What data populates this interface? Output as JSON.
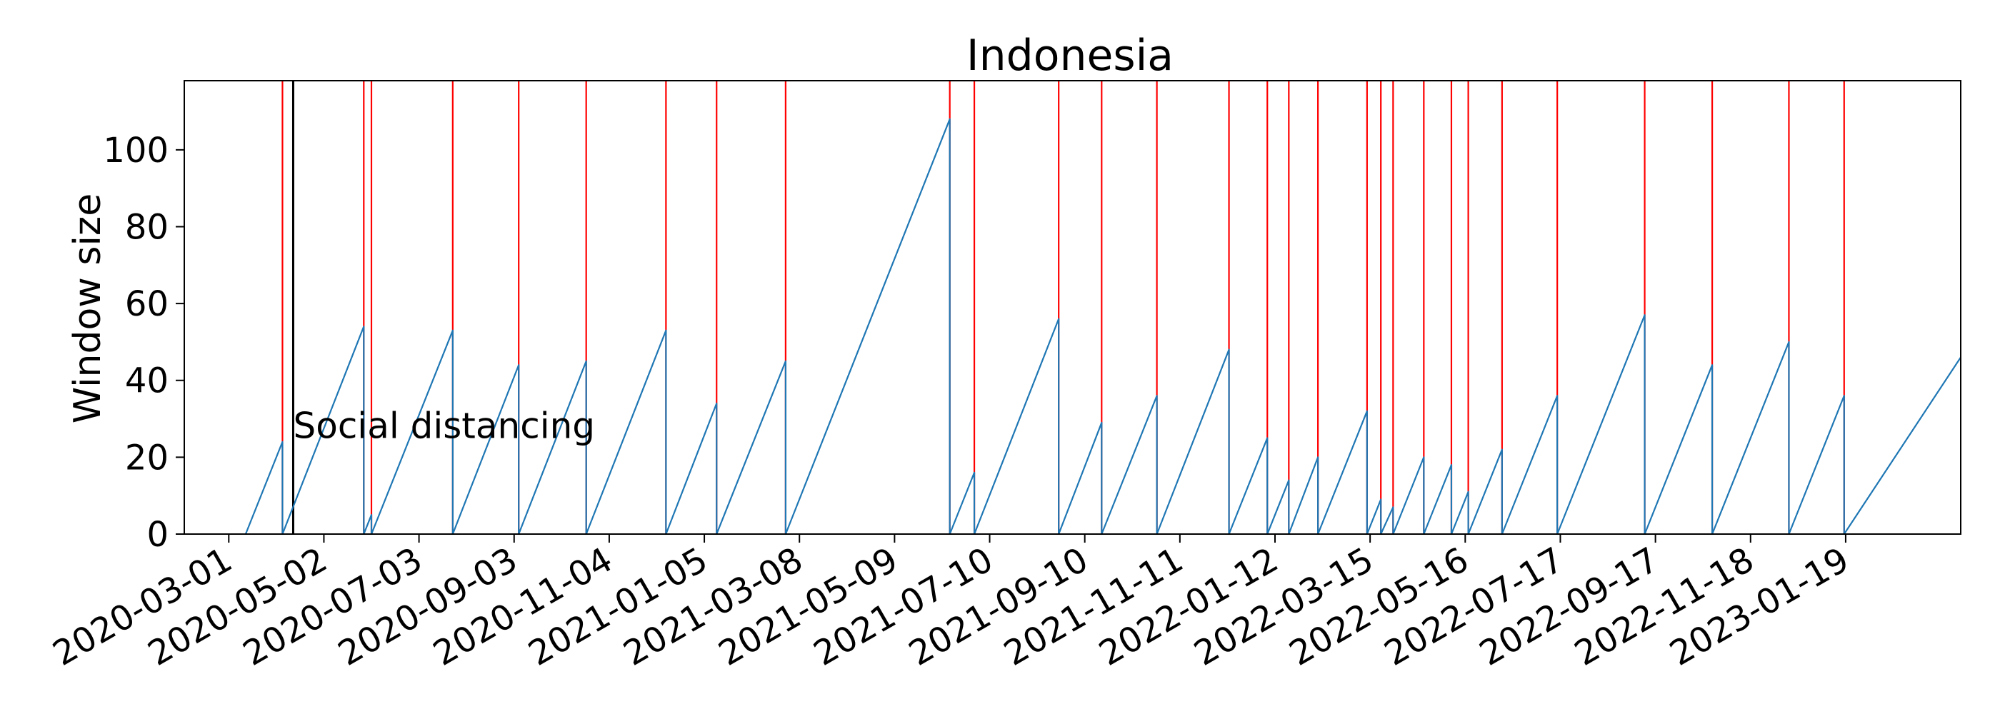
{
  "chart_data": {
    "type": "line",
    "title": "Indonesia",
    "xlabel": "",
    "ylabel": "Window size",
    "ylim": [
      0,
      118
    ],
    "xlim": [
      "2020-02-01",
      "2023-04-04"
    ],
    "y_ticks": [
      0,
      20,
      40,
      60,
      80,
      100
    ],
    "x_ticks": [
      "2020-03-01",
      "2020-05-02",
      "2020-07-03",
      "2020-09-03",
      "2020-11-04",
      "2021-01-05",
      "2021-03-08",
      "2021-05-09",
      "2021-07-10",
      "2021-09-10",
      "2021-11-11",
      "2022-01-12",
      "2022-03-15",
      "2022-05-16",
      "2022-07-17",
      "2022-09-17",
      "2022-11-18",
      "2023-01-19"
    ],
    "grid": false,
    "series": [
      {
        "color": "#1f77b4",
        "points": [
          [
            "2020-03-12",
            0
          ],
          [
            "2020-04-05",
            24
          ],
          [
            "2020-04-05",
            0
          ],
          [
            "2020-05-28",
            54
          ],
          [
            "2020-05-28",
            0
          ],
          [
            "2020-06-02",
            5
          ],
          [
            "2020-06-02",
            0
          ],
          [
            "2020-07-25",
            53
          ],
          [
            "2020-07-25",
            0
          ],
          [
            "2020-09-06",
            44
          ],
          [
            "2020-09-06",
            0
          ],
          [
            "2020-10-20",
            45
          ],
          [
            "2020-10-20",
            0
          ],
          [
            "2020-12-11",
            53
          ],
          [
            "2020-12-11",
            0
          ],
          [
            "2021-01-13",
            34
          ],
          [
            "2021-01-13",
            0
          ],
          [
            "2021-02-27",
            45
          ],
          [
            "2021-02-27",
            0
          ],
          [
            "2021-06-14",
            108
          ],
          [
            "2021-06-14",
            0
          ],
          [
            "2021-06-30",
            16
          ],
          [
            "2021-06-30",
            0
          ],
          [
            "2021-08-24",
            56
          ],
          [
            "2021-08-24",
            0
          ],
          [
            "2021-09-21",
            29
          ],
          [
            "2021-09-21",
            0
          ],
          [
            "2021-10-27",
            36
          ],
          [
            "2021-10-27",
            0
          ],
          [
            "2021-12-13",
            48
          ],
          [
            "2021-12-13",
            0
          ],
          [
            "2022-01-07",
            25
          ],
          [
            "2022-01-07",
            0
          ],
          [
            "2022-01-21",
            14
          ],
          [
            "2022-01-21",
            0
          ],
          [
            "2022-02-09",
            20
          ],
          [
            "2022-02-09",
            0
          ],
          [
            "2022-03-13",
            32
          ],
          [
            "2022-03-13",
            0
          ],
          [
            "2022-03-22",
            9
          ],
          [
            "2022-03-22",
            0
          ],
          [
            "2022-03-30",
            7
          ],
          [
            "2022-03-30",
            0
          ],
          [
            "2022-04-19",
            20
          ],
          [
            "2022-04-19",
            0
          ],
          [
            "2022-05-07",
            18
          ],
          [
            "2022-05-07",
            0
          ],
          [
            "2022-05-18",
            11
          ],
          [
            "2022-05-18",
            0
          ],
          [
            "2022-06-09",
            22
          ],
          [
            "2022-06-09",
            0
          ],
          [
            "2022-07-15",
            36
          ],
          [
            "2022-07-15",
            0
          ],
          [
            "2022-09-10",
            57
          ],
          [
            "2022-09-10",
            0
          ],
          [
            "2022-10-24",
            44
          ],
          [
            "2022-10-24",
            0
          ],
          [
            "2022-12-13",
            50
          ],
          [
            "2022-12-13",
            0
          ],
          [
            "2023-01-18",
            36
          ],
          [
            "2023-01-18",
            0
          ],
          [
            "2023-04-04",
            46
          ]
        ]
      }
    ],
    "change_points": {
      "color": "#ff0000",
      "dates": [
        "2020-04-05",
        "2020-05-28",
        "2020-06-02",
        "2020-07-25",
        "2020-09-06",
        "2020-10-20",
        "2020-12-11",
        "2021-01-13",
        "2021-02-27",
        "2021-06-14",
        "2021-06-30",
        "2021-08-24",
        "2021-09-21",
        "2021-10-27",
        "2021-12-13",
        "2022-01-07",
        "2022-01-21",
        "2022-02-09",
        "2022-03-13",
        "2022-03-22",
        "2022-03-30",
        "2022-04-19",
        "2022-05-07",
        "2022-05-18",
        "2022-06-09",
        "2022-07-15",
        "2022-09-10",
        "2022-10-24",
        "2022-12-13",
        "2023-01-18"
      ]
    },
    "events": [
      {
        "date": "2020-04-12",
        "label": "Social distancing",
        "color": "#000000",
        "label_y": 28
      }
    ]
  }
}
